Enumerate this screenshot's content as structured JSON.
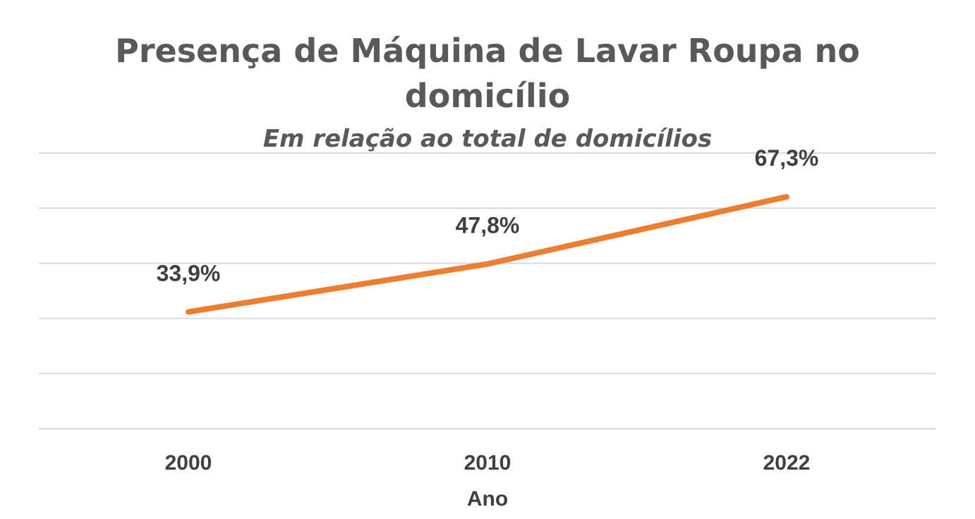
{
  "chart_data": {
    "type": "line",
    "title_lines": [
      "Presença de Máquina de Lavar Roupa no",
      "domicílio"
    ],
    "subtitle": "Em relação ao total de domicílios",
    "xlabel": "Ano",
    "ylabel": "",
    "categories": [
      "2000",
      "2010",
      "2022"
    ],
    "series": [
      {
        "values": [
          33.9,
          47.8,
          67.3
        ],
        "labels": [
          "33,9%",
          "47,8%",
          "67,3%"
        ],
        "color": "#ED7D31"
      }
    ],
    "ylim": [
      0,
      80
    ],
    "y_gridline_step": 16,
    "grid": true,
    "y_tick_labels_visible": false,
    "legend": "none",
    "colors": {
      "line": "#ED7D31",
      "gridline": "#D9D9D9",
      "title": "#595959",
      "labels": "#404040"
    }
  }
}
